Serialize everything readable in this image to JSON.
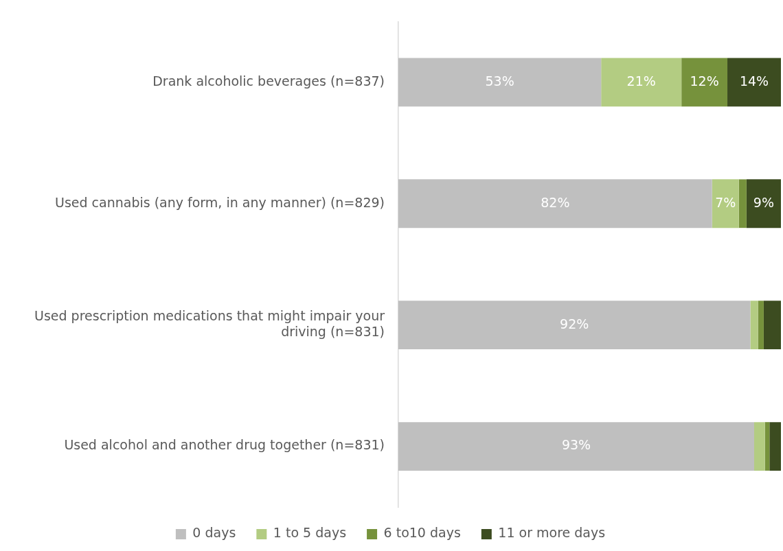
{
  "chart_data": {
    "type": "bar",
    "orientation": "horizontal",
    "stacked": true,
    "categories": [
      "Drank alcoholic beverages (n=837)",
      "Used cannabis (any form, in any manner) (n=829)",
      "Used prescription medications that might impair your driving (n=831)",
      "Used alcohol and another drug together (n=831)"
    ],
    "series": [
      {
        "name": "0 days",
        "color": "#bfbfbf",
        "values": [
          53,
          82,
          92,
          93
        ],
        "value_labels": [
          "53%",
          "82%",
          "92%",
          "93%"
        ]
      },
      {
        "name": "1 to 5 days",
        "color": "#b3cc82",
        "values": [
          21,
          7,
          2,
          2.8
        ],
        "value_labels": [
          "21%",
          "7%",
          null,
          null
        ]
      },
      {
        "name": "6 to10 days",
        "color": "#76923c",
        "values": [
          12,
          2,
          1.5,
          1.2
        ],
        "value_labels": [
          "12%",
          null,
          null,
          null
        ]
      },
      {
        "name": "11 or more days",
        "color": "#3c4c20",
        "values": [
          14,
          9,
          4.5,
          3
        ],
        "value_labels": [
          "14%",
          "9%",
          null,
          null
        ]
      }
    ],
    "legend": "bottom"
  }
}
